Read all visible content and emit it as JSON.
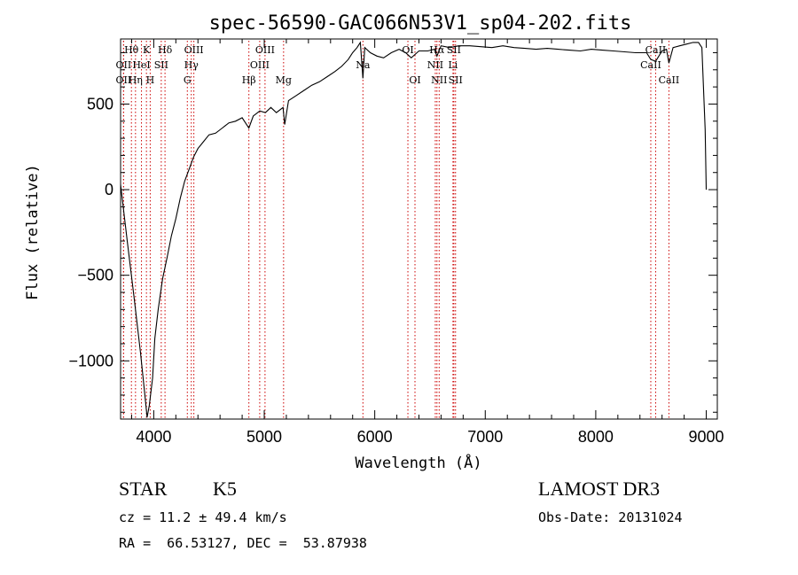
{
  "chart_data": {
    "type": "line",
    "title": "spec-56590-GAC066N53V1_sp04-202.fits",
    "xlabel": "Wavelength (Å)",
    "ylabel": "Flux (relative)",
    "xlim": [
      3700,
      9100
    ],
    "ylim": [
      -1340,
      880
    ],
    "xticks": [
      4000,
      5000,
      6000,
      7000,
      8000,
      9000
    ],
    "yticks": [
      -1000,
      -500,
      0,
      500
    ],
    "series": [
      {
        "name": "spectrum",
        "x": [
          3700,
          3760,
          3820,
          3880,
          3920,
          3940,
          3960,
          3990,
          4010,
          4040,
          4080,
          4120,
          4160,
          4200,
          4240,
          4280,
          4320,
          4360,
          4400,
          4450,
          4500,
          4560,
          4620,
          4680,
          4740,
          4800,
          4861,
          4900,
          4960,
          5010,
          5060,
          5110,
          5170,
          5185,
          5220,
          5290,
          5360,
          5430,
          5500,
          5570,
          5640,
          5700,
          5760,
          5800,
          5840,
          5870,
          5893,
          5910,
          5960,
          6020,
          6080,
          6150,
          6220,
          6280,
          6330,
          6400,
          6480,
          6540,
          6563,
          6600,
          6680,
          6760,
          6860,
          6960,
          7060,
          7160,
          7260,
          7360,
          7460,
          7560,
          7660,
          7760,
          7860,
          7960,
          8060,
          8160,
          8260,
          8360,
          8460,
          8498,
          8542,
          8600,
          8640,
          8662,
          8700,
          8760,
          8820,
          8880,
          8930,
          8960,
          8990,
          9000
        ],
        "y": [
          30,
          -300,
          -620,
          -950,
          -1200,
          -1330,
          -1260,
          -1100,
          -870,
          -700,
          -520,
          -400,
          -270,
          -170,
          -50,
          50,
          120,
          190,
          240,
          280,
          320,
          330,
          360,
          390,
          400,
          420,
          360,
          430,
          460,
          450,
          480,
          450,
          480,
          380,
          520,
          550,
          580,
          610,
          630,
          660,
          690,
          720,
          760,
          800,
          830,
          860,
          650,
          830,
          800,
          780,
          770,
          800,
          820,
          800,
          770,
          810,
          810,
          820,
          780,
          840,
          830,
          840,
          840,
          835,
          830,
          840,
          830,
          825,
          820,
          825,
          820,
          815,
          810,
          820,
          815,
          810,
          805,
          800,
          800,
          760,
          750,
          810,
          820,
          740,
          830,
          840,
          850,
          860,
          860,
          830,
          350,
          0
        ]
      }
    ],
    "line_markers": [
      {
        "label": "Hθ",
        "wavelength": 3798,
        "row": 0
      },
      {
        "label": "OII",
        "wavelength": 3727,
        "row": 1
      },
      {
        "label": "OII",
        "wavelength": 3727,
        "row": 2
      },
      {
        "label": "K",
        "wavelength": 3934,
        "row": 0
      },
      {
        "label": "HeI",
        "wavelength": 3889,
        "row": 1
      },
      {
        "label": "Hη",
        "wavelength": 3835,
        "row": 2
      },
      {
        "label": "Hδ",
        "wavelength": 4102,
        "row": 0
      },
      {
        "label": "SII",
        "wavelength": 4068,
        "row": 1
      },
      {
        "label": "H",
        "wavelength": 3968,
        "row": 2
      },
      {
        "label": "OIII",
        "wavelength": 4363,
        "row": 0
      },
      {
        "label": "Hγ",
        "wavelength": 4340,
        "row": 1
      },
      {
        "label": "G",
        "wavelength": 4304,
        "row": 2
      },
      {
        "label": "OIII",
        "wavelength": 5007,
        "row": 0
      },
      {
        "label": "OIII",
        "wavelength": 4959,
        "row": 1
      },
      {
        "label": "Hβ",
        "wavelength": 4861,
        "row": 2
      },
      {
        "label": "Mg",
        "wavelength": 5175,
        "row": 2
      },
      {
        "label": "Na",
        "wavelength": 5893,
        "row": 1
      },
      {
        "label": "OI",
        "wavelength": 6300,
        "row": 0
      },
      {
        "label": "OI",
        "wavelength": 6364,
        "row": 2
      },
      {
        "label": "Hα",
        "wavelength": 6563,
        "row": 0
      },
      {
        "label": "NII",
        "wavelength": 6548,
        "row": 1
      },
      {
        "label": "NII",
        "wavelength": 6583,
        "row": 2
      },
      {
        "label": "SII",
        "wavelength": 6716,
        "row": 0
      },
      {
        "label": "Li",
        "wavelength": 6708,
        "row": 1
      },
      {
        "label": "SII",
        "wavelength": 6731,
        "row": 2
      },
      {
        "label": "CaII",
        "wavelength": 8542,
        "row": 0
      },
      {
        "label": "CaII",
        "wavelength": 8498,
        "row": 1
      },
      {
        "label": "CaII",
        "wavelength": 8662,
        "row": 2
      }
    ],
    "marker_color": "#cc0000"
  },
  "info": {
    "class": "STAR",
    "subclass": "K5",
    "survey": "LAMOST DR3",
    "cz": "cz = 11.2 ± 49.4 km/s",
    "obs_date": "Obs-Date: 20131024",
    "radec": "RA =  66.53127, DEC =  53.87938"
  }
}
